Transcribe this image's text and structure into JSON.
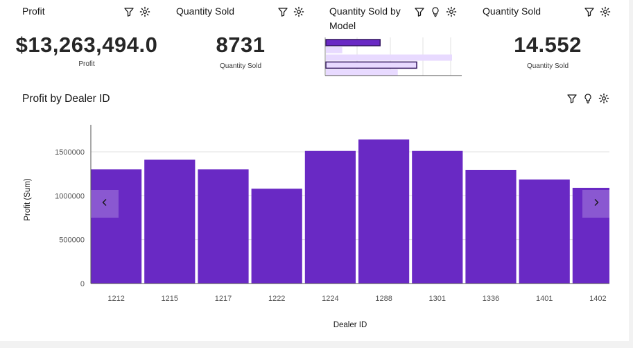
{
  "tiles": [
    {
      "title": "Profit",
      "value": "$13,263,494.0",
      "label": "Profit"
    },
    {
      "title": "Quantity Sold",
      "value": "8731",
      "label": "Quantity Sold"
    },
    {
      "title_line1": "Quantity Sold by",
      "title_line2": "Model"
    },
    {
      "title": "Quantity Sold",
      "value": "14.552",
      "label": "Quantity Sold"
    }
  ],
  "icons": {
    "filter": "filter-icon",
    "insight": "lightbulb-icon",
    "settings": "settings-gear-icon",
    "prev": "chevron-left-icon",
    "next": "chevron-right-icon"
  },
  "colors": {
    "bar": "#6929c4",
    "bar_light": "#e8daff",
    "text": "#161616"
  },
  "mini_chart": {
    "type": "bar",
    "orientation": "horizontal",
    "values": [
      0.43,
      0.13,
      1.0,
      0.72,
      0.57
    ],
    "highlighted": [
      0,
      3
    ]
  },
  "main_chart": {
    "title": "Profit by Dealer ID"
  },
  "chart_data": {
    "type": "bar",
    "title": "Profit by Dealer ID",
    "xlabel": "Dealer ID",
    "ylabel": "Profit (Sum)",
    "categories": [
      "1212",
      "1215",
      "1217",
      "1222",
      "1224",
      "1288",
      "1301",
      "1336",
      "1401",
      "1402"
    ],
    "values": [
      1300000,
      1410000,
      1300000,
      1080000,
      1510000,
      1640000,
      1510000,
      1295000,
      1185000,
      1090000
    ],
    "yticks": [
      0,
      500000,
      1000000,
      1500000
    ],
    "ylim": [
      0,
      1800000
    ],
    "grid": true,
    "color": "#6929c4"
  }
}
